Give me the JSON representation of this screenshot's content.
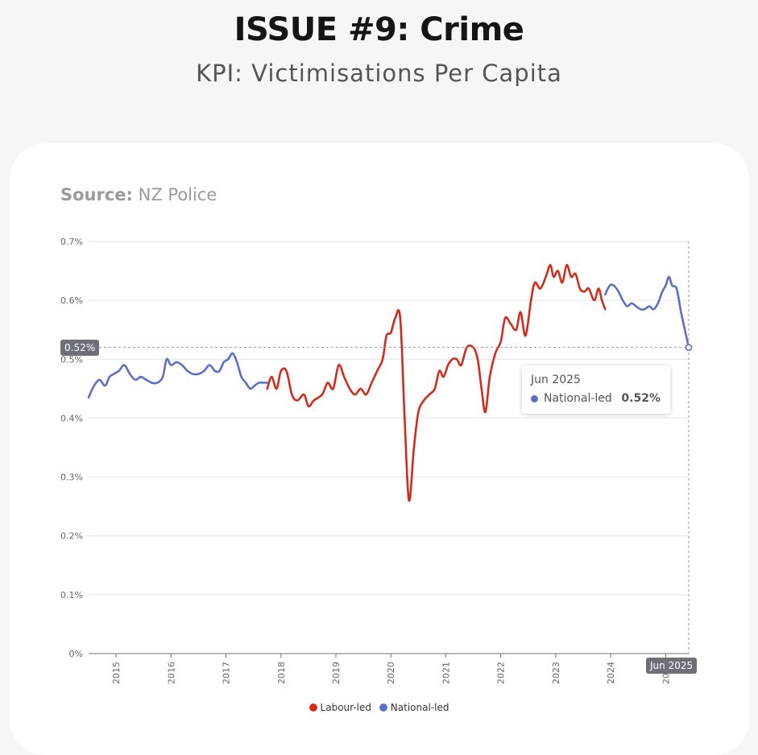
{
  "header": {
    "title": "ISSUE #9: Crime",
    "subtitle": "KPI: Victimisations Per Capita"
  },
  "source": {
    "label": "Source:",
    "value": "NZ Police"
  },
  "tooltip": {
    "date": "Jun 2025",
    "series": "National-led",
    "value": "0.52%"
  },
  "axis_pointer": {
    "y_label": "0.52%",
    "x_label": "Jun 2025"
  },
  "colors": {
    "labour": "#d22b1b",
    "national": "#5b6fc5",
    "grid": "#e6e6e6"
  },
  "chart_data": {
    "type": "line",
    "title": "",
    "xlabel": "",
    "ylabel": "",
    "ylim": [
      0,
      0.7
    ],
    "yticks": [
      "0%",
      "0.1%",
      "0.2%",
      "0.3%",
      "0.4%",
      "0.5%",
      "0.6%",
      "0.7%"
    ],
    "xticks": [
      "2015",
      "2016",
      "2017",
      "2018",
      "2019",
      "2020",
      "2021",
      "2022",
      "2023",
      "2024",
      "2025"
    ],
    "xlim": [
      2014.5,
      2025.42
    ],
    "grid": true,
    "legend_position": "bottom",
    "series": [
      {
        "name": "Labour-led",
        "color": "#d22b1b",
        "points": [
          [
            2017.75,
            0.45
          ],
          [
            2017.83,
            0.47
          ],
          [
            2017.92,
            0.45
          ],
          [
            2018.0,
            0.48
          ],
          [
            2018.1,
            0.48
          ],
          [
            2018.2,
            0.44
          ],
          [
            2018.3,
            0.43
          ],
          [
            2018.42,
            0.44
          ],
          [
            2018.5,
            0.42
          ],
          [
            2018.6,
            0.43
          ],
          [
            2018.75,
            0.44
          ],
          [
            2018.85,
            0.46
          ],
          [
            2018.95,
            0.45
          ],
          [
            2019.05,
            0.49
          ],
          [
            2019.15,
            0.47
          ],
          [
            2019.25,
            0.45
          ],
          [
            2019.35,
            0.44
          ],
          [
            2019.45,
            0.45
          ],
          [
            2019.55,
            0.44
          ],
          [
            2019.65,
            0.46
          ],
          [
            2019.75,
            0.48
          ],
          [
            2019.85,
            0.5
          ],
          [
            2019.92,
            0.54
          ],
          [
            2020.0,
            0.545
          ],
          [
            2020.08,
            0.57
          ],
          [
            2020.17,
            0.57
          ],
          [
            2020.25,
            0.4
          ],
          [
            2020.33,
            0.26
          ],
          [
            2020.42,
            0.35
          ],
          [
            2020.5,
            0.41
          ],
          [
            2020.6,
            0.43
          ],
          [
            2020.7,
            0.44
          ],
          [
            2020.8,
            0.45
          ],
          [
            2020.88,
            0.48
          ],
          [
            2020.96,
            0.47
          ],
          [
            2021.04,
            0.49
          ],
          [
            2021.12,
            0.5
          ],
          [
            2021.2,
            0.5
          ],
          [
            2021.28,
            0.49
          ],
          [
            2021.38,
            0.52
          ],
          [
            2021.5,
            0.52
          ],
          [
            2021.58,
            0.5
          ],
          [
            2021.65,
            0.45
          ],
          [
            2021.72,
            0.41
          ],
          [
            2021.8,
            0.47
          ],
          [
            2021.9,
            0.51
          ],
          [
            2022.0,
            0.53
          ],
          [
            2022.08,
            0.57
          ],
          [
            2022.18,
            0.56
          ],
          [
            2022.28,
            0.55
          ],
          [
            2022.36,
            0.58
          ],
          [
            2022.45,
            0.54
          ],
          [
            2022.55,
            0.6
          ],
          [
            2022.62,
            0.63
          ],
          [
            2022.72,
            0.62
          ],
          [
            2022.82,
            0.64
          ],
          [
            2022.9,
            0.66
          ],
          [
            2022.96,
            0.64
          ],
          [
            2023.04,
            0.65
          ],
          [
            2023.12,
            0.63
          ],
          [
            2023.2,
            0.66
          ],
          [
            2023.28,
            0.64
          ],
          [
            2023.36,
            0.645
          ],
          [
            2023.44,
            0.62
          ],
          [
            2023.52,
            0.615
          ],
          [
            2023.6,
            0.62
          ],
          [
            2023.7,
            0.6
          ],
          [
            2023.78,
            0.62
          ],
          [
            2023.84,
            0.6
          ],
          [
            2023.9,
            0.585
          ]
        ]
      },
      {
        "name": "National-led",
        "color": "#5b6fc5",
        "points": [
          [
            2014.5,
            0.435
          ],
          [
            2014.6,
            0.455
          ],
          [
            2014.7,
            0.465
          ],
          [
            2014.8,
            0.455
          ],
          [
            2014.88,
            0.47
          ],
          [
            2014.96,
            0.475
          ],
          [
            2015.05,
            0.48
          ],
          [
            2015.15,
            0.49
          ],
          [
            2015.25,
            0.475
          ],
          [
            2015.35,
            0.465
          ],
          [
            2015.45,
            0.47
          ],
          [
            2015.55,
            0.465
          ],
          [
            2015.65,
            0.46
          ],
          [
            2015.75,
            0.46
          ],
          [
            2015.85,
            0.47
          ],
          [
            2015.92,
            0.5
          ],
          [
            2016.0,
            0.49
          ],
          [
            2016.1,
            0.495
          ],
          [
            2016.2,
            0.49
          ],
          [
            2016.3,
            0.48
          ],
          [
            2016.4,
            0.475
          ],
          [
            2016.5,
            0.475
          ],
          [
            2016.6,
            0.48
          ],
          [
            2016.7,
            0.49
          ],
          [
            2016.8,
            0.48
          ],
          [
            2016.88,
            0.48
          ],
          [
            2016.96,
            0.495
          ],
          [
            2017.04,
            0.5
          ],
          [
            2017.12,
            0.51
          ],
          [
            2017.2,
            0.495
          ],
          [
            2017.28,
            0.47
          ],
          [
            2017.36,
            0.46
          ],
          [
            2017.44,
            0.45
          ],
          [
            2017.52,
            0.455
          ],
          [
            2017.6,
            0.46
          ],
          [
            2017.7,
            0.46
          ],
          [
            2017.75,
            0.46
          ],
          null,
          [
            2023.9,
            0.61
          ],
          [
            2023.98,
            0.625
          ],
          [
            2024.06,
            0.625
          ],
          [
            2024.14,
            0.615
          ],
          [
            2024.22,
            0.6
          ],
          [
            2024.3,
            0.59
          ],
          [
            2024.38,
            0.595
          ],
          [
            2024.46,
            0.59
          ],
          [
            2024.54,
            0.585
          ],
          [
            2024.62,
            0.585
          ],
          [
            2024.7,
            0.59
          ],
          [
            2024.78,
            0.585
          ],
          [
            2024.86,
            0.595
          ],
          [
            2024.94,
            0.615
          ],
          [
            2025.0,
            0.625
          ],
          [
            2025.06,
            0.64
          ],
          [
            2025.12,
            0.625
          ],
          [
            2025.2,
            0.62
          ],
          [
            2025.28,
            0.58
          ],
          [
            2025.35,
            0.55
          ],
          [
            2025.42,
            0.52
          ]
        ]
      }
    ]
  }
}
